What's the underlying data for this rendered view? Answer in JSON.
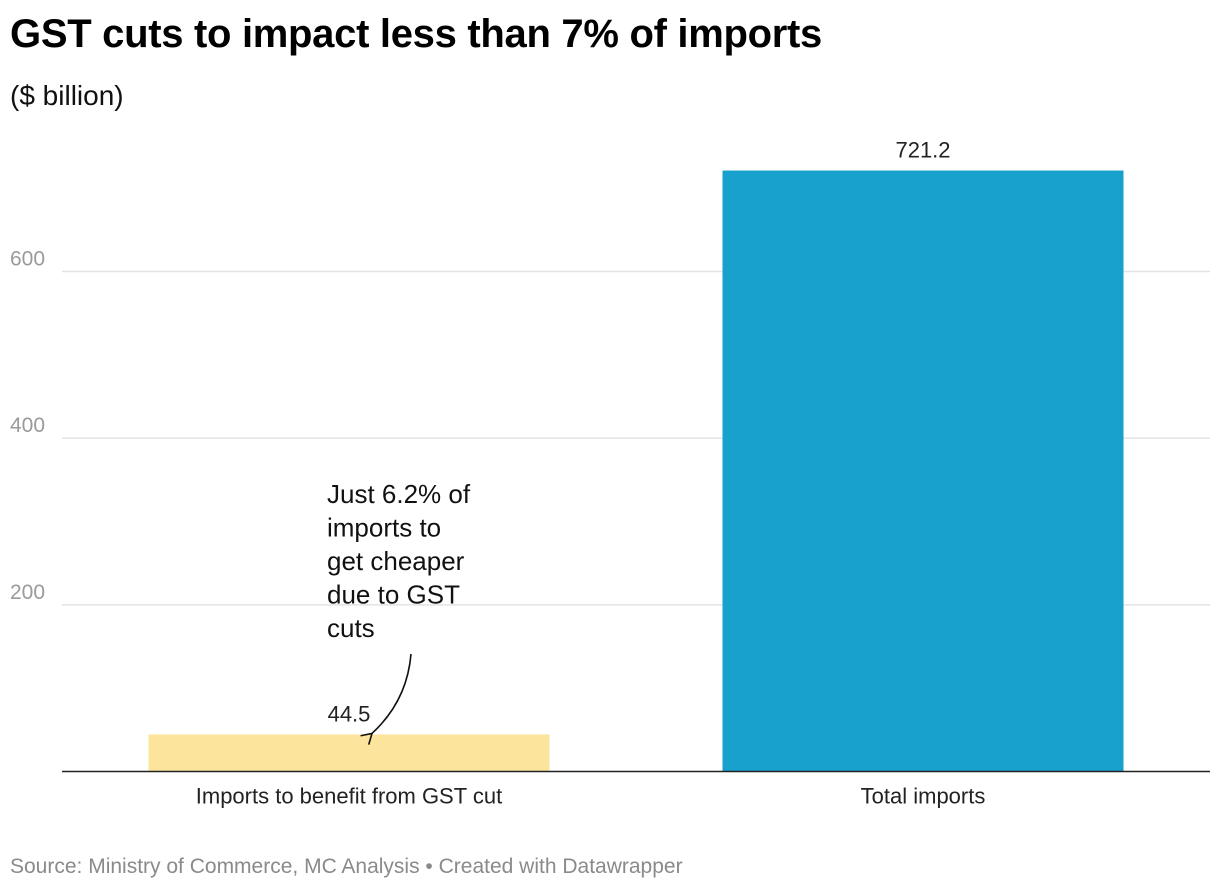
{
  "header": {
    "title": "GST cuts to impact less than 7% of imports",
    "subtitle": "($ billion)"
  },
  "footer": {
    "source": "Source: Ministry of Commerce, MC Analysis • Created with Datawrapper"
  },
  "chart_data": {
    "type": "bar",
    "title": "GST cuts to impact less than 7% of imports",
    "subtitle": "($ billion)",
    "categories": [
      "Imports to benefit from GST cut",
      "Total imports"
    ],
    "values": [
      44.5,
      721.2
    ],
    "value_labels": [
      "44.5",
      "721.2"
    ],
    "colors": [
      "#fde49c",
      "#19a1cd"
    ],
    "ylim": [
      0,
      800
    ],
    "yticks": [
      200,
      400,
      600
    ],
    "grid": true,
    "xlabel": "",
    "ylabel": "",
    "annotation": {
      "lines": [
        "Just 6.2% of",
        "imports to",
        "get cheaper",
        "due to GST",
        "cuts"
      ],
      "target_category": "Imports to benefit from GST cut"
    }
  }
}
